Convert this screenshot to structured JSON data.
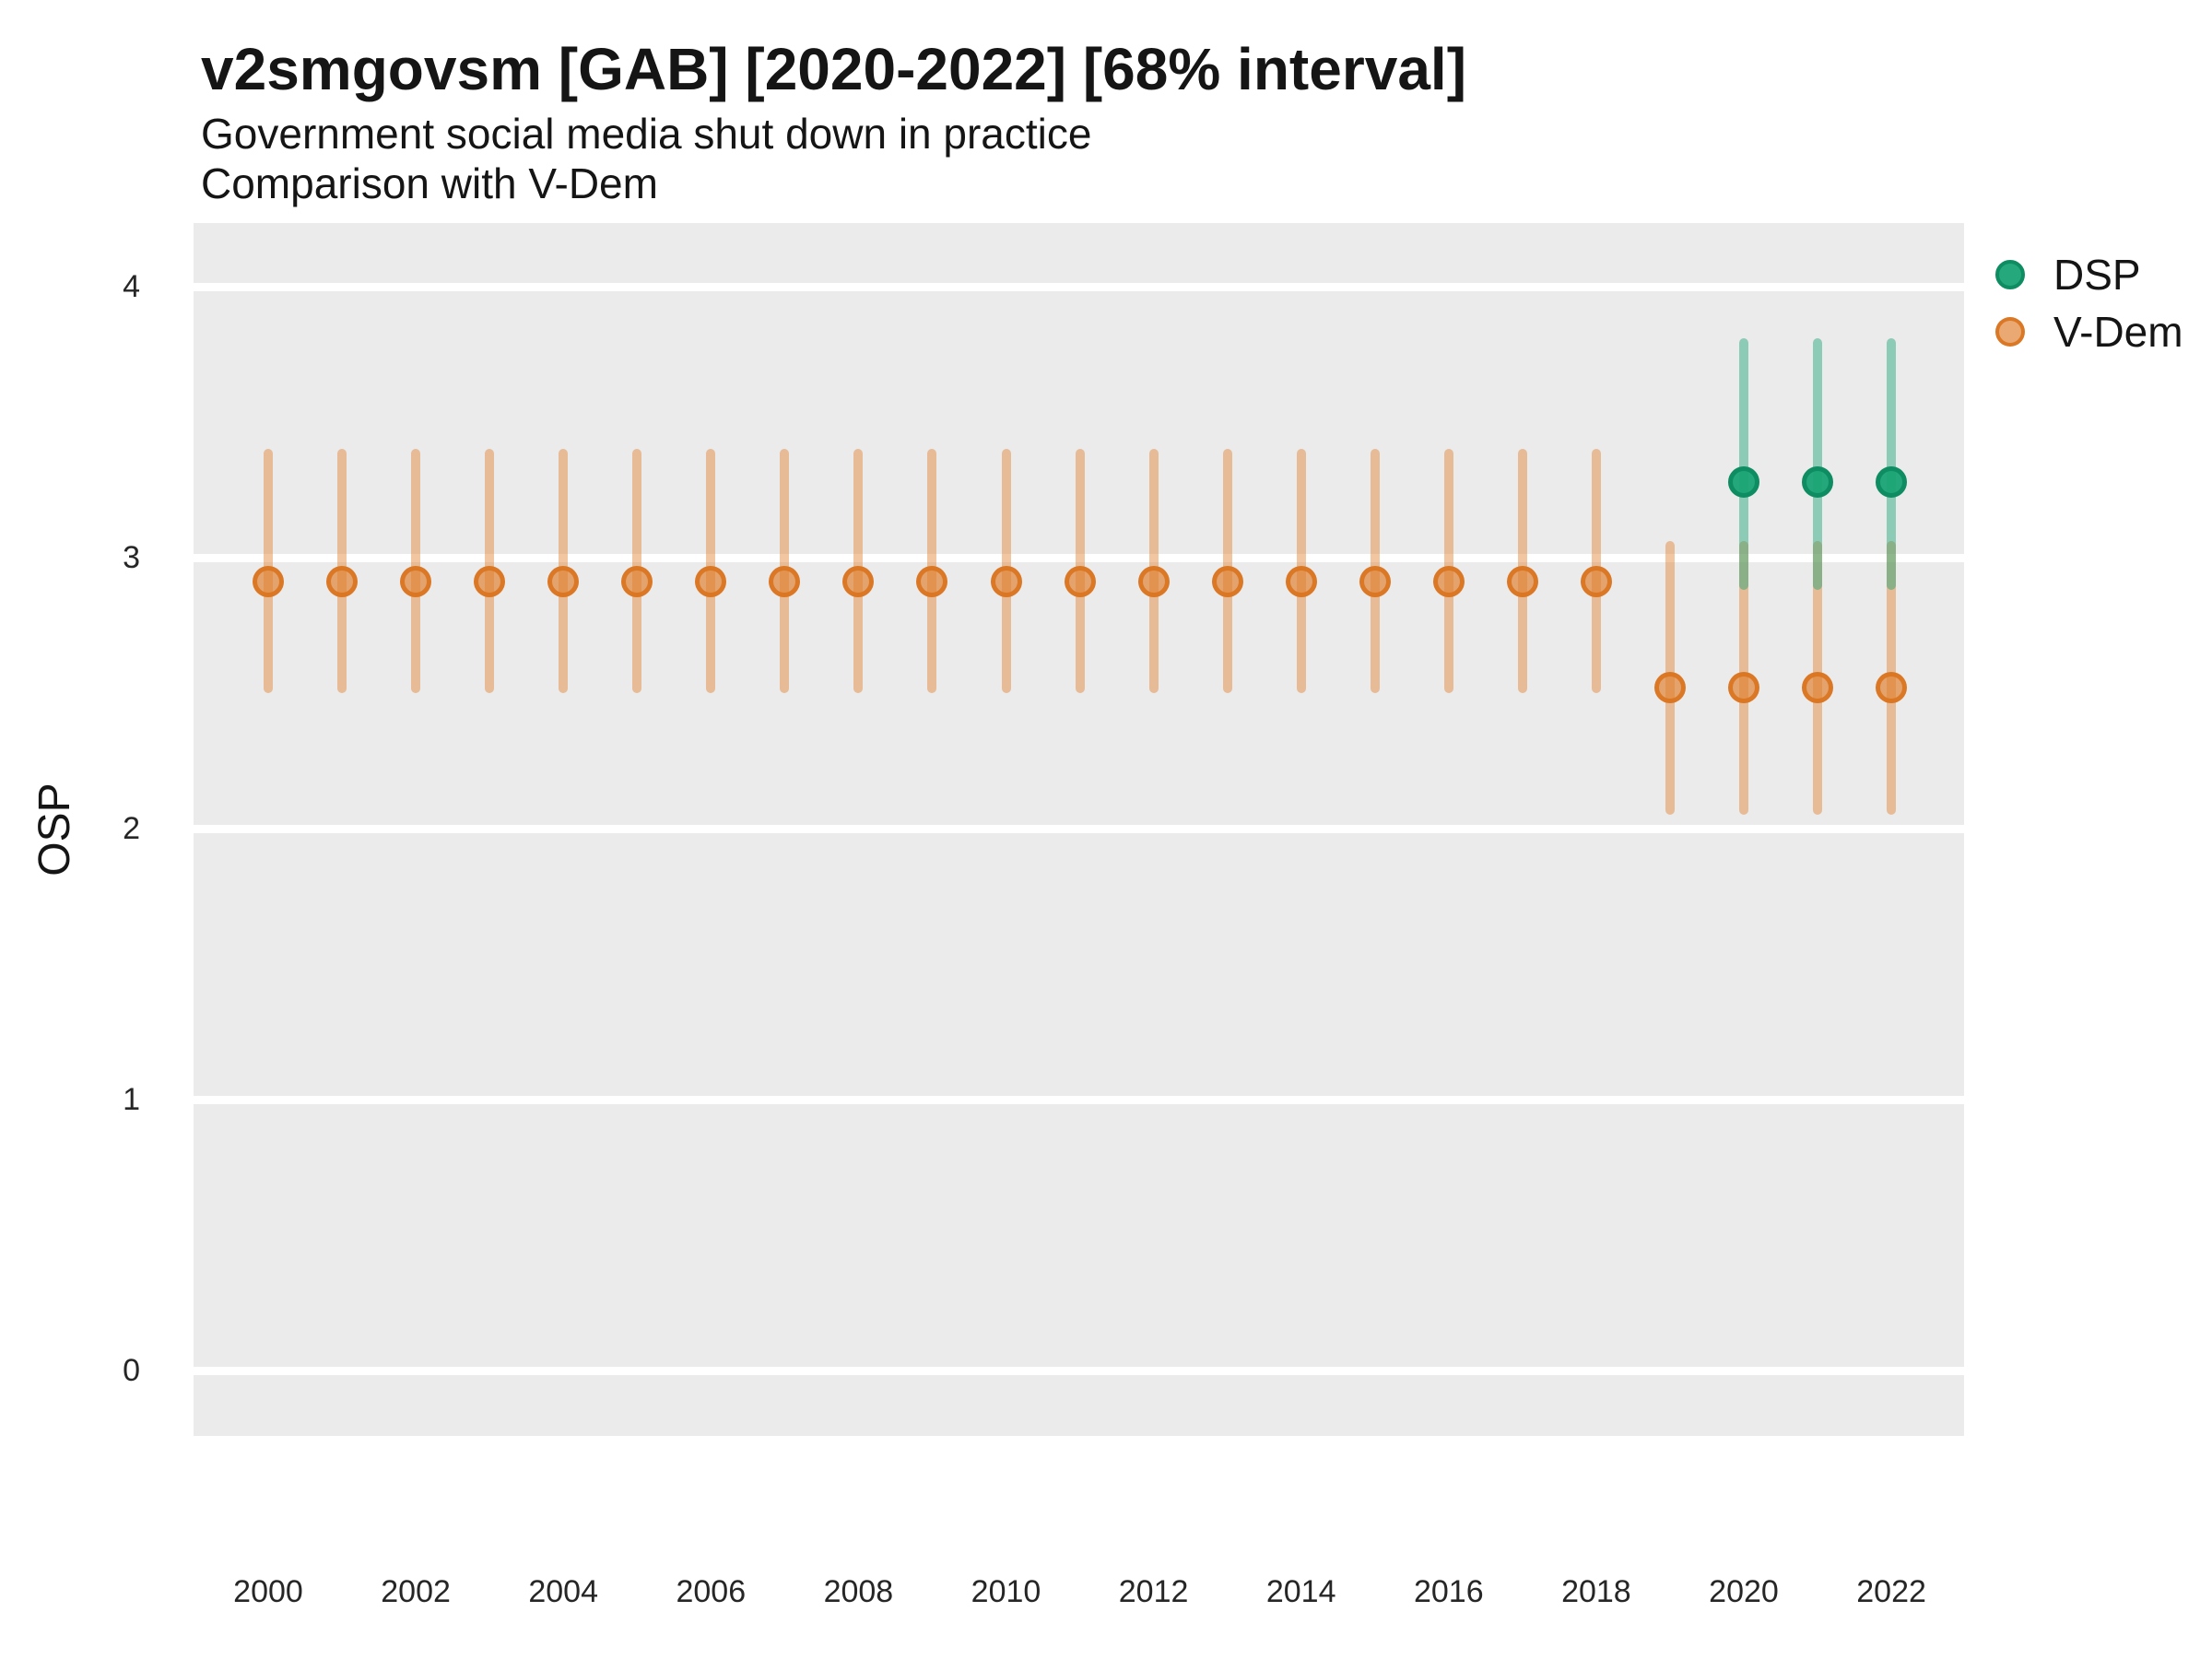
{
  "chart_data": {
    "type": "pointrange",
    "title": "v2smgovsm [GAB] [2020-2022] [68% interval]",
    "subtitle1": "Government social media shut down in practice",
    "subtitle2": "Comparison with V-Dem",
    "ylabel": "OSP",
    "xlabel": "",
    "interval_note": "68% interval",
    "axis": {
      "x_domain": [
        2000,
        2022
      ],
      "x_tick_step": 2,
      "y_domain": [
        0,
        4
      ],
      "grid": "major-only",
      "legend_position": "right"
    },
    "x_tick_labels": [
      "2000",
      "2002",
      "2004",
      "2006",
      "2008",
      "2010",
      "2012",
      "2014",
      "2016",
      "2018",
      "2020",
      "2022"
    ],
    "y_tick_labels": [
      "4",
      "3",
      "2",
      "1",
      "0"
    ],
    "y_tick_values": [
      4,
      3,
      2,
      1,
      0
    ],
    "colors": {
      "panel_background": "#EBEBEB",
      "gridline": "#FFFFFF",
      "text": "#151515",
      "tick_text": "#262626",
      "dsp": {
        "base": "#19A374",
        "stroke": "#0E8C62"
      },
      "vdem": {
        "base": "#E0802F",
        "stroke": "#D9731E"
      }
    },
    "series": [
      {
        "name": "DSP",
        "key": "dsp",
        "points": [
          {
            "year": 2020,
            "est": 3.28,
            "lo": 2.88,
            "hi": 3.81
          },
          {
            "year": 2021,
            "est": 3.28,
            "lo": 2.88,
            "hi": 3.81
          },
          {
            "year": 2022,
            "est": 3.28,
            "lo": 2.88,
            "hi": 3.81
          }
        ]
      },
      {
        "name": "V-Dem",
        "key": "vdem",
        "points": [
          {
            "year": 2000,
            "est": 2.91,
            "lo": 2.5,
            "hi": 3.4
          },
          {
            "year": 2001,
            "est": 2.91,
            "lo": 2.5,
            "hi": 3.4
          },
          {
            "year": 2002,
            "est": 2.91,
            "lo": 2.5,
            "hi": 3.4
          },
          {
            "year": 2003,
            "est": 2.91,
            "lo": 2.5,
            "hi": 3.4
          },
          {
            "year": 2004,
            "est": 2.91,
            "lo": 2.5,
            "hi": 3.4
          },
          {
            "year": 2005,
            "est": 2.91,
            "lo": 2.5,
            "hi": 3.4
          },
          {
            "year": 2006,
            "est": 2.91,
            "lo": 2.5,
            "hi": 3.4
          },
          {
            "year": 2007,
            "est": 2.91,
            "lo": 2.5,
            "hi": 3.4
          },
          {
            "year": 2008,
            "est": 2.91,
            "lo": 2.5,
            "hi": 3.4
          },
          {
            "year": 2009,
            "est": 2.91,
            "lo": 2.5,
            "hi": 3.4
          },
          {
            "year": 2010,
            "est": 2.91,
            "lo": 2.5,
            "hi": 3.4
          },
          {
            "year": 2011,
            "est": 2.91,
            "lo": 2.5,
            "hi": 3.4
          },
          {
            "year": 2012,
            "est": 2.91,
            "lo": 2.5,
            "hi": 3.4
          },
          {
            "year": 2013,
            "est": 2.91,
            "lo": 2.5,
            "hi": 3.4
          },
          {
            "year": 2014,
            "est": 2.91,
            "lo": 2.5,
            "hi": 3.4
          },
          {
            "year": 2015,
            "est": 2.91,
            "lo": 2.5,
            "hi": 3.4
          },
          {
            "year": 2016,
            "est": 2.91,
            "lo": 2.5,
            "hi": 3.4
          },
          {
            "year": 2017,
            "est": 2.91,
            "lo": 2.5,
            "hi": 3.4
          },
          {
            "year": 2018,
            "est": 2.91,
            "lo": 2.5,
            "hi": 3.4
          },
          {
            "year": 2019,
            "est": 2.52,
            "lo": 2.05,
            "hi": 3.06
          },
          {
            "year": 2020,
            "est": 2.52,
            "lo": 2.05,
            "hi": 3.06
          },
          {
            "year": 2021,
            "est": 2.52,
            "lo": 2.05,
            "hi": 3.06
          },
          {
            "year": 2022,
            "est": 2.52,
            "lo": 2.05,
            "hi": 3.06
          }
        ]
      }
    ],
    "legend": {
      "items": [
        "DSP",
        "V-Dem"
      ]
    }
  }
}
